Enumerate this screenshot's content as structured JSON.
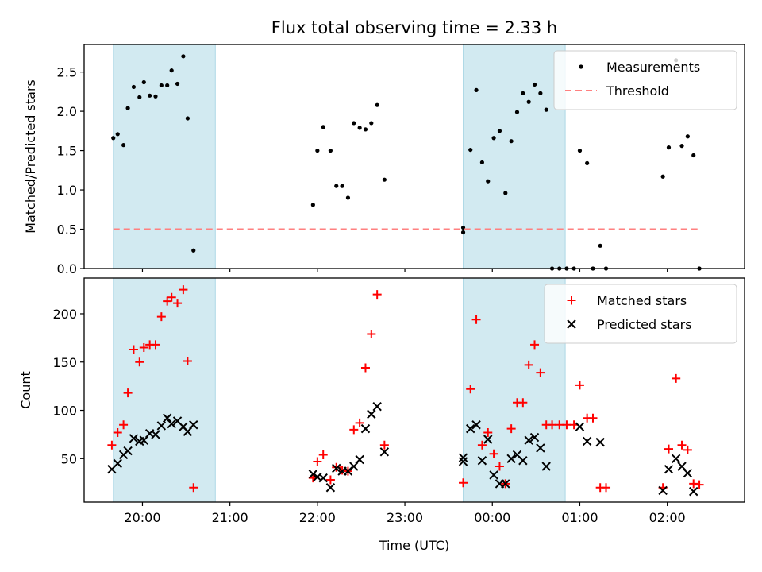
{
  "chart_data": {
    "type": "scatter",
    "title": "Flux total observing time = 2.33 h",
    "xlabel": "Time (UTC)",
    "x_tick_labels": [
      "20:00",
      "21:00",
      "22:00",
      "23:00",
      "00:00",
      "01:00",
      "02:00"
    ],
    "x_tick_times": [
      "20:00",
      "21:00",
      "22:00",
      "23:00",
      "00:00",
      "01:00",
      "02:00"
    ],
    "xlim": [
      "19:20",
      "02:53"
    ],
    "shaded_intervals": [
      [
        "19:40",
        "20:50"
      ],
      [
        "23:40",
        "00:50"
      ]
    ],
    "shade_color": "#add8e6",
    "panels": [
      {
        "ylabel": "Matched/Predicted stars",
        "ylim": [
          0,
          2.85
        ],
        "yticks": [
          "0.0",
          "0.5",
          "1.0",
          "1.5",
          "2.0",
          "2.5"
        ],
        "show_x_tick_labels": false,
        "legend_position": "upper-right",
        "series": [
          {
            "name": "Measurements",
            "marker": "dot",
            "color": "#000000",
            "points": [
              [
                "19:40",
                1.66
              ],
              [
                "19:43",
                1.71
              ],
              [
                "19:47",
                1.57
              ],
              [
                "19:50",
                2.04
              ],
              [
                "19:54",
                2.31
              ],
              [
                "19:58",
                2.18
              ],
              [
                "20:01",
                2.37
              ],
              [
                "20:05",
                2.2
              ],
              [
                "20:09",
                2.19
              ],
              [
                "20:13",
                2.33
              ],
              [
                "20:17",
                2.33
              ],
              [
                "20:20",
                2.52
              ],
              [
                "20:24",
                2.35
              ],
              [
                "20:28",
                2.7
              ],
              [
                "20:31",
                1.91
              ],
              [
                "20:35",
                0.23
              ],
              [
                "21:57",
                0.81
              ],
              [
                "22:00",
                1.5
              ],
              [
                "22:04",
                1.8
              ],
              [
                "22:09",
                1.5
              ],
              [
                "22:13",
                1.05
              ],
              [
                "22:17",
                1.05
              ],
              [
                "22:21",
                0.9
              ],
              [
                "22:25",
                1.85
              ],
              [
                "22:29",
                1.79
              ],
              [
                "22:33",
                1.77
              ],
              [
                "22:37",
                1.85
              ],
              [
                "22:41",
                2.08
              ],
              [
                "22:46",
                1.13
              ],
              [
                "23:40",
                0.46
              ],
              [
                "23:40",
                0.52
              ],
              [
                "23:45",
                1.51
              ],
              [
                "23:49",
                2.27
              ],
              [
                "23:53",
                1.35
              ],
              [
                "23:57",
                1.11
              ],
              [
                "00:01",
                1.66
              ],
              [
                "00:05",
                1.75
              ],
              [
                "00:09",
                0.96
              ],
              [
                "00:13",
                1.62
              ],
              [
                "00:17",
                1.99
              ],
              [
                "00:21",
                2.23
              ],
              [
                "00:25",
                2.12
              ],
              [
                "00:29",
                2.34
              ],
              [
                "00:33",
                2.23
              ],
              [
                "00:37",
                2.02
              ],
              [
                "00:41",
                0.0
              ],
              [
                "00:46",
                0.0
              ],
              [
                "00:51",
                0.0
              ],
              [
                "00:56",
                0.0
              ],
              [
                "01:00",
                1.5
              ],
              [
                "01:05",
                1.34
              ],
              [
                "01:09",
                0.0
              ],
              [
                "01:14",
                0.29
              ],
              [
                "01:18",
                0.0
              ],
              [
                "01:57",
                1.17
              ],
              [
                "02:01",
                1.54
              ],
              [
                "02:06",
                2.65
              ],
              [
                "02:10",
                1.56
              ],
              [
                "02:14",
                1.68
              ],
              [
                "02:18",
                1.44
              ],
              [
                "02:22",
                0.0
              ]
            ]
          },
          {
            "name": "Threshold",
            "kind": "dashed-line",
            "color": "#ff8080",
            "points": [
              [
                "19:40",
                0.5
              ],
              [
                "02:22",
                0.5
              ]
            ]
          }
        ]
      },
      {
        "ylabel": "Count",
        "ylim": [
          5,
          237
        ],
        "yticks": [
          "50",
          "100",
          "150",
          "200"
        ],
        "show_x_tick_labels": true,
        "legend_position": "upper-right",
        "series": [
          {
            "name": "Matched stars",
            "marker": "plus",
            "color": "#ff0000",
            "points": [
              [
                "19:39",
                64
              ],
              [
                "19:43",
                77
              ],
              [
                "19:47",
                85
              ],
              [
                "19:50",
                118
              ],
              [
                "19:54",
                163
              ],
              [
                "19:58",
                150
              ],
              [
                "20:01",
                165
              ],
              [
                "20:05",
                168
              ],
              [
                "20:09",
                168
              ],
              [
                "20:13",
                197
              ],
              [
                "20:17",
                213
              ],
              [
                "20:20",
                217
              ],
              [
                "20:24",
                211
              ],
              [
                "20:28",
                225
              ],
              [
                "20:31",
                151
              ],
              [
                "20:35",
                20
              ],
              [
                "21:57",
                30
              ],
              [
                "22:00",
                47
              ],
              [
                "22:04",
                54
              ],
              [
                "22:09",
                28
              ],
              [
                "22:13",
                41
              ],
              [
                "22:17",
                38
              ],
              [
                "22:21",
                37
              ],
              [
                "22:25",
                80
              ],
              [
                "22:29",
                87
              ],
              [
                "22:33",
                144
              ],
              [
                "22:37",
                179
              ],
              [
                "22:41",
                220
              ],
              [
                "22:46",
                64
              ],
              [
                "23:40",
                25
              ],
              [
                "23:45",
                122
              ],
              [
                "23:49",
                194
              ],
              [
                "23:53",
                64
              ],
              [
                "23:57",
                77
              ],
              [
                "00:01",
                55
              ],
              [
                "00:05",
                42
              ],
              [
                "00:09",
                24
              ],
              [
                "00:13",
                81
              ],
              [
                "00:17",
                108
              ],
              [
                "00:21",
                108
              ],
              [
                "00:25",
                147
              ],
              [
                "00:29",
                168
              ],
              [
                "00:33",
                139
              ],
              [
                "00:37",
                85
              ],
              [
                "00:41",
                85
              ],
              [
                "00:46",
                85
              ],
              [
                "00:51",
                85
              ],
              [
                "00:56",
                85
              ],
              [
                "01:00",
                126
              ],
              [
                "01:05",
                92
              ],
              [
                "01:09",
                92
              ],
              [
                "01:14",
                20
              ],
              [
                "01:18",
                20
              ],
              [
                "01:57",
                20
              ],
              [
                "02:01",
                60
              ],
              [
                "02:06",
                133
              ],
              [
                "02:10",
                64
              ],
              [
                "02:14",
                59
              ],
              [
                "02:18",
                24
              ],
              [
                "02:22",
                23
              ]
            ]
          },
          {
            "name": "Predicted stars",
            "marker": "x",
            "color": "#000000",
            "points": [
              [
                "19:39",
                39
              ],
              [
                "19:43",
                45
              ],
              [
                "19:47",
                54
              ],
              [
                "19:50",
                58
              ],
              [
                "19:54",
                71
              ],
              [
                "19:58",
                68
              ],
              [
                "20:01",
                69
              ],
              [
                "20:05",
                76
              ],
              [
                "20:09",
                75
              ],
              [
                "20:13",
                84
              ],
              [
                "20:17",
                92
              ],
              [
                "20:20",
                86
              ],
              [
                "20:24",
                89
              ],
              [
                "20:28",
                83
              ],
              [
                "20:31",
                78
              ],
              [
                "20:35",
                85
              ],
              [
                "21:57",
                34
              ],
              [
                "22:00",
                31
              ],
              [
                "22:04",
                30
              ],
              [
                "22:09",
                20
              ],
              [
                "22:13",
                40
              ],
              [
                "22:17",
                37
              ],
              [
                "22:21",
                37
              ],
              [
                "22:25",
                42
              ],
              [
                "22:29",
                49
              ],
              [
                "22:33",
                81
              ],
              [
                "22:37",
                96
              ],
              [
                "22:41",
                104
              ],
              [
                "22:46",
                57
              ],
              [
                "23:40",
                51
              ],
              [
                "23:40",
                47
              ],
              [
                "23:45",
                81
              ],
              [
                "23:49",
                85
              ],
              [
                "23:53",
                48
              ],
              [
                "23:57",
                70
              ],
              [
                "00:01",
                33
              ],
              [
                "00:05",
                24
              ],
              [
                "00:09",
                24
              ],
              [
                "00:13",
                50
              ],
              [
                "00:17",
                54
              ],
              [
                "00:21",
                48
              ],
              [
                "00:25",
                69
              ],
              [
                "00:29",
                72
              ],
              [
                "00:33",
                61
              ],
              [
                "00:37",
                42
              ],
              [
                "01:00",
                83
              ],
              [
                "01:05",
                68
              ],
              [
                "01:14",
                67
              ],
              [
                "01:57",
                17
              ],
              [
                "02:01",
                39
              ],
              [
                "02:06",
                50
              ],
              [
                "02:10",
                42
              ],
              [
                "02:14",
                35
              ],
              [
                "02:18",
                16
              ]
            ]
          }
        ]
      }
    ]
  }
}
